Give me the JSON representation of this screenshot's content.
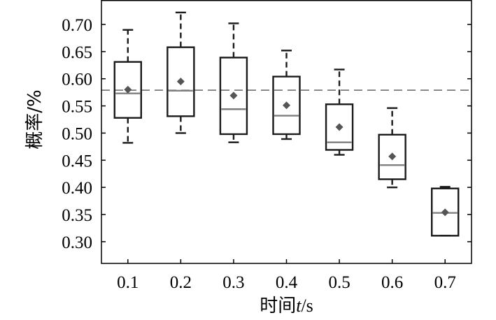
{
  "chart_data": {
    "type": "box",
    "xlabel": "时间t/s",
    "ylabel": "概率/%",
    "ylim": [
      0.26,
      0.745
    ],
    "xlim": [
      0.05,
      0.75
    ],
    "yticks": [
      0.3,
      0.35,
      0.4,
      0.45,
      0.5,
      0.55,
      0.6,
      0.65,
      0.7
    ],
    "ytick_labels": [
      "0.30",
      "0.35",
      "0.40",
      "0.45",
      "0.50",
      "0.55",
      "0.60",
      "0.65",
      "0.70"
    ],
    "categories": [
      "0.1",
      "0.2",
      "0.3",
      "0.4",
      "0.5",
      "0.6",
      "0.7"
    ],
    "reference_line": 0.579,
    "boxes": [
      {
        "x": 0.1,
        "whisker_low": 0.482,
        "q1": 0.528,
        "median": 0.573,
        "q3": 0.631,
        "whisker_high": 0.69,
        "mean": 0.58
      },
      {
        "x": 0.2,
        "whisker_low": 0.5,
        "q1": 0.531,
        "median": 0.578,
        "q3": 0.658,
        "whisker_high": 0.722,
        "mean": 0.595
      },
      {
        "x": 0.3,
        "whisker_low": 0.483,
        "q1": 0.498,
        "median": 0.544,
        "q3": 0.639,
        "whisker_high": 0.702,
        "mean": 0.569
      },
      {
        "x": 0.4,
        "whisker_low": 0.489,
        "q1": 0.498,
        "median": 0.532,
        "q3": 0.604,
        "whisker_high": 0.652,
        "mean": 0.551
      },
      {
        "x": 0.5,
        "whisker_low": 0.46,
        "q1": 0.469,
        "median": 0.483,
        "q3": 0.553,
        "whisker_high": 0.617,
        "mean": 0.511
      },
      {
        "x": 0.6,
        "whisker_low": 0.4,
        "q1": 0.415,
        "median": 0.441,
        "q3": 0.497,
        "whisker_high": 0.546,
        "mean": 0.457
      },
      {
        "x": 0.7,
        "whisker_low": 0.311,
        "q1": 0.311,
        "median": 0.353,
        "q3": 0.398,
        "whisker_high": 0.401,
        "mean": 0.354
      }
    ],
    "colors": {
      "box": "#1a1a1a",
      "median": "#7f7f7f",
      "mean_marker": "#555555",
      "reference_line": "#555555"
    },
    "grid": false
  }
}
